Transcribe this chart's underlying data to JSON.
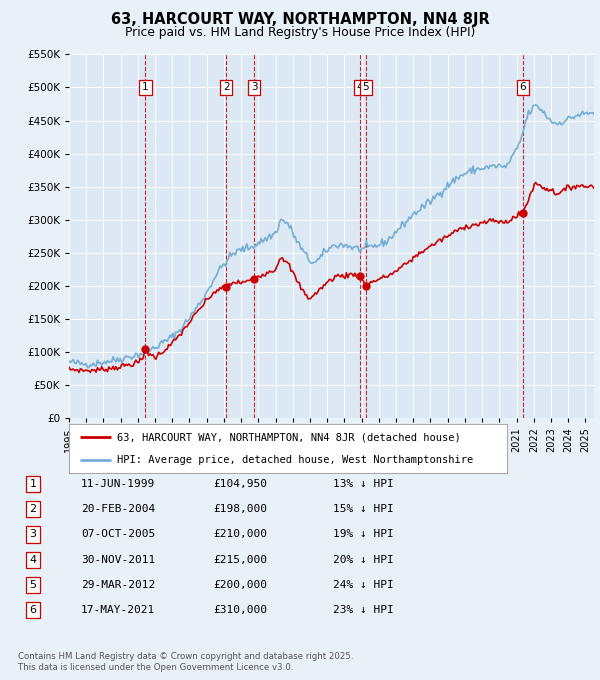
{
  "title": "63, HARCOURT WAY, NORTHAMPTON, NN4 8JR",
  "subtitle": "Price paid vs. HM Land Registry's House Price Index (HPI)",
  "background_color": "#e8f0f8",
  "plot_bg_color": "#dce8f4",
  "legend_line1": "63, HARCOURT WAY, NORTHAMPTON, NN4 8JR (detached house)",
  "legend_line2": "HPI: Average price, detached house, West Northamptonshire",
  "footer1": "Contains HM Land Registry data © Crown copyright and database right 2025.",
  "footer2": "This data is licensed under the Open Government Licence v3.0.",
  "transactions": [
    {
      "num": 1,
      "date": "11-JUN-1999",
      "price": 104950,
      "pct": "13%",
      "year": 1999.44
    },
    {
      "num": 2,
      "date": "20-FEB-2004",
      "price": 198000,
      "pct": "15%",
      "year": 2004.13
    },
    {
      "num": 3,
      "date": "07-OCT-2005",
      "price": 210000,
      "pct": "19%",
      "year": 2005.76
    },
    {
      "num": 4,
      "date": "30-NOV-2011",
      "price": 215000,
      "pct": "20%",
      "year": 2011.91
    },
    {
      "num": 5,
      "date": "29-MAR-2012",
      "price": 200000,
      "pct": "24%",
      "year": 2012.24
    },
    {
      "num": 6,
      "date": "17-MAY-2021",
      "price": 310000,
      "pct": "23%",
      "year": 2021.37
    }
  ],
  "hpi_color": "#74aed4",
  "price_color": "#cc0000",
  "vline_color": "#cc0000",
  "ylim": [
    0,
    550000
  ],
  "yticks": [
    0,
    50000,
    100000,
    150000,
    200000,
    250000,
    300000,
    350000,
    400000,
    450000,
    500000,
    550000
  ],
  "xlim_start": 1995.0,
  "xlim_end": 2025.5,
  "xtick_years": [
    1995,
    1996,
    1997,
    1998,
    1999,
    2000,
    2001,
    2002,
    2003,
    2004,
    2005,
    2006,
    2007,
    2008,
    2009,
    2010,
    2011,
    2012,
    2013,
    2014,
    2015,
    2016,
    2017,
    2018,
    2019,
    2020,
    2021,
    2022,
    2023,
    2024,
    2025
  ],
  "hpi_anchors": [
    [
      1995.0,
      85000
    ],
    [
      1995.5,
      83000
    ],
    [
      1996.0,
      82000
    ],
    [
      1996.5,
      82500
    ],
    [
      1997.0,
      85000
    ],
    [
      1997.5,
      87000
    ],
    [
      1998.0,
      90000
    ],
    [
      1998.5,
      93000
    ],
    [
      1999.0,
      96000
    ],
    [
      1999.5,
      100000
    ],
    [
      2000.0,
      107000
    ],
    [
      2000.5,
      115000
    ],
    [
      2001.0,
      123000
    ],
    [
      2001.5,
      135000
    ],
    [
      2002.0,
      152000
    ],
    [
      2002.5,
      170000
    ],
    [
      2003.0,
      190000
    ],
    [
      2003.5,
      215000
    ],
    [
      2004.0,
      233000
    ],
    [
      2004.5,
      248000
    ],
    [
      2005.0,
      255000
    ],
    [
      2005.5,
      258000
    ],
    [
      2006.0,
      265000
    ],
    [
      2006.5,
      272000
    ],
    [
      2007.0,
      280000
    ],
    [
      2007.3,
      300000
    ],
    [
      2007.7,
      295000
    ],
    [
      2008.0,
      280000
    ],
    [
      2008.3,
      265000
    ],
    [
      2008.7,
      248000
    ],
    [
      2009.0,
      238000
    ],
    [
      2009.3,
      235000
    ],
    [
      2009.6,
      242000
    ],
    [
      2010.0,
      255000
    ],
    [
      2010.5,
      262000
    ],
    [
      2011.0,
      262000
    ],
    [
      2011.5,
      258000
    ],
    [
      2012.0,
      255000
    ],
    [
      2012.5,
      258000
    ],
    [
      2013.0,
      262000
    ],
    [
      2013.5,
      268000
    ],
    [
      2014.0,
      282000
    ],
    [
      2014.5,
      295000
    ],
    [
      2015.0,
      308000
    ],
    [
      2015.5,
      318000
    ],
    [
      2016.0,
      328000
    ],
    [
      2016.5,
      340000
    ],
    [
      2017.0,
      352000
    ],
    [
      2017.5,
      362000
    ],
    [
      2018.0,
      370000
    ],
    [
      2018.5,
      375000
    ],
    [
      2019.0,
      378000
    ],
    [
      2019.5,
      380000
    ],
    [
      2020.0,
      382000
    ],
    [
      2020.3,
      378000
    ],
    [
      2020.6,
      388000
    ],
    [
      2021.0,
      405000
    ],
    [
      2021.3,
      425000
    ],
    [
      2021.6,
      455000
    ],
    [
      2021.9,
      468000
    ],
    [
      2022.1,
      472000
    ],
    [
      2022.4,
      468000
    ],
    [
      2022.7,
      458000
    ],
    [
      2023.0,
      450000
    ],
    [
      2023.3,
      445000
    ],
    [
      2023.6,
      448000
    ],
    [
      2024.0,
      452000
    ],
    [
      2024.5,
      458000
    ],
    [
      2025.0,
      460000
    ],
    [
      2025.5,
      462000
    ]
  ],
  "price_anchors": [
    [
      1995.0,
      74000
    ],
    [
      1995.5,
      73000
    ],
    [
      1996.0,
      72000
    ],
    [
      1996.5,
      72500
    ],
    [
      1997.0,
      74000
    ],
    [
      1997.5,
      76000
    ],
    [
      1998.0,
      78000
    ],
    [
      1998.5,
      81000
    ],
    [
      1999.0,
      84000
    ],
    [
      1999.3,
      90000
    ],
    [
      1999.44,
      104950
    ],
    [
      1999.6,
      98000
    ],
    [
      2000.0,
      92000
    ],
    [
      2000.5,
      102000
    ],
    [
      2001.0,
      113000
    ],
    [
      2001.5,
      128000
    ],
    [
      2002.0,
      145000
    ],
    [
      2002.5,
      162000
    ],
    [
      2003.0,
      178000
    ],
    [
      2003.5,
      192000
    ],
    [
      2004.13,
      198000
    ],
    [
      2004.5,
      205000
    ],
    [
      2005.0,
      205000
    ],
    [
      2005.4,
      207000
    ],
    [
      2005.76,
      210000
    ],
    [
      2006.0,
      215000
    ],
    [
      2006.5,
      220000
    ],
    [
      2007.0,
      225000
    ],
    [
      2007.3,
      245000
    ],
    [
      2007.5,
      240000
    ],
    [
      2007.8,
      230000
    ],
    [
      2008.0,
      220000
    ],
    [
      2008.3,
      205000
    ],
    [
      2008.6,
      192000
    ],
    [
      2008.9,
      182000
    ],
    [
      2009.1,
      183000
    ],
    [
      2009.4,
      190000
    ],
    [
      2009.7,
      198000
    ],
    [
      2010.0,
      205000
    ],
    [
      2010.5,
      215000
    ],
    [
      2011.0,
      215000
    ],
    [
      2011.5,
      218000
    ],
    [
      2011.91,
      215000
    ],
    [
      2012.0,
      210000
    ],
    [
      2012.24,
      200000
    ],
    [
      2012.5,
      205000
    ],
    [
      2013.0,
      210000
    ],
    [
      2013.5,
      215000
    ],
    [
      2014.0,
      222000
    ],
    [
      2014.5,
      232000
    ],
    [
      2015.0,
      242000
    ],
    [
      2015.5,
      252000
    ],
    [
      2016.0,
      260000
    ],
    [
      2016.5,
      268000
    ],
    [
      2017.0,
      275000
    ],
    [
      2017.5,
      283000
    ],
    [
      2018.0,
      290000
    ],
    [
      2018.5,
      292000
    ],
    [
      2019.0,
      295000
    ],
    [
      2019.5,
      298000
    ],
    [
      2020.0,
      298000
    ],
    [
      2020.3,
      295000
    ],
    [
      2020.6,
      300000
    ],
    [
      2021.0,
      305000
    ],
    [
      2021.37,
      310000
    ],
    [
      2021.6,
      325000
    ],
    [
      2021.9,
      345000
    ],
    [
      2022.1,
      355000
    ],
    [
      2022.4,
      352000
    ],
    [
      2022.6,
      348000
    ],
    [
      2023.0,
      345000
    ],
    [
      2023.3,
      340000
    ],
    [
      2023.6,
      342000
    ],
    [
      2024.0,
      348000
    ],
    [
      2024.5,
      352000
    ],
    [
      2025.0,
      350000
    ],
    [
      2025.5,
      352000
    ]
  ]
}
